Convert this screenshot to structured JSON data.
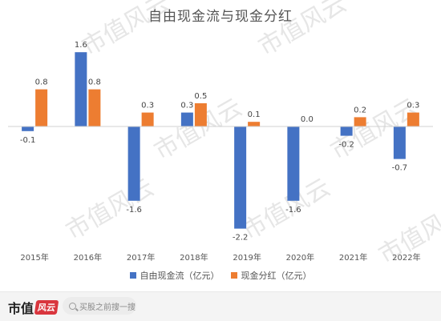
{
  "chart_data": {
    "type": "bar",
    "title": "自由现金流与现金分红",
    "categories": [
      "2015年",
      "2016年",
      "2017年",
      "2018年",
      "2019年",
      "2020年",
      "2021年",
      "2022年"
    ],
    "series": [
      {
        "name": "自由现金流（亿元）",
        "color": "#4472c4",
        "values": [
          -0.1,
          1.6,
          -1.6,
          0.3,
          -2.2,
          -1.6,
          -0.2,
          -0.7
        ],
        "labels": [
          "-0.1",
          "1.6",
          "-1.6",
          "0.3",
          "-2.2",
          "-1.6",
          "-0.2",
          "-0.7"
        ]
      },
      {
        "name": "现金分红（亿元）",
        "color": "#ed7d31",
        "values": [
          0.8,
          0.8,
          0.3,
          0.5,
          0.1,
          0.0,
          0.2,
          0.3
        ],
        "labels": [
          "0.8",
          "0.8",
          "0.3",
          "0.5",
          "0.1",
          "0.0",
          "0.2",
          "0.3"
        ]
      }
    ],
    "ylim": [
      -2.4,
      1.8
    ],
    "grid": false,
    "legend": "bottom"
  },
  "watermark": "市值风云",
  "footer": {
    "brand_text": "市值",
    "brand_stamp": "风云",
    "search_placeholder": "买股之前搜一搜"
  }
}
